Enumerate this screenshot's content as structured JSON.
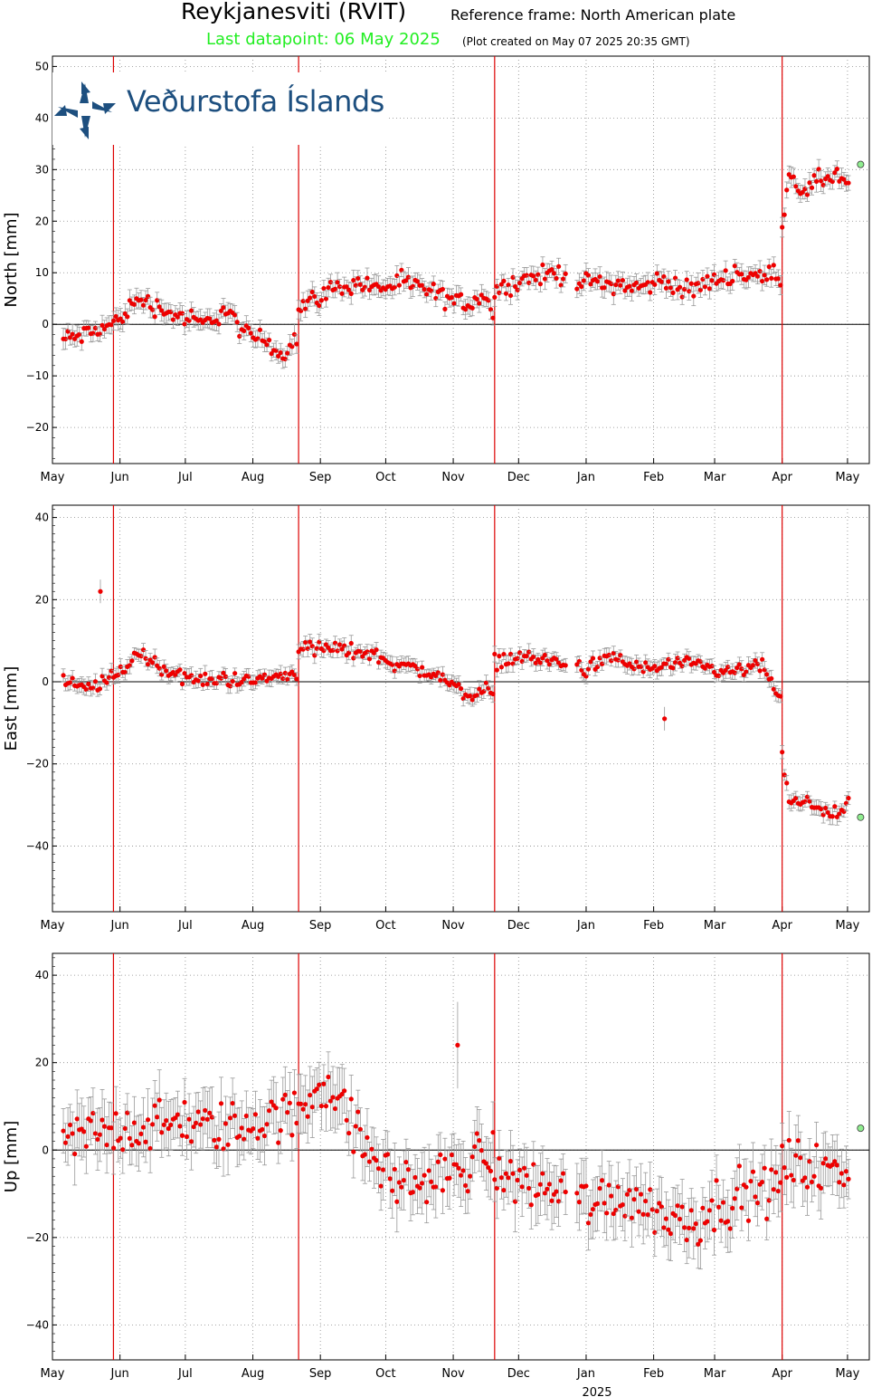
{
  "header": {
    "title": "Reykjanesviti (RVIT)",
    "reference_frame": "Reference frame: North American plate",
    "last_datapoint": "Last datapoint: 06 May 2025",
    "plot_created": "(Plot created on May 07 2025 20:35 GMT)"
  },
  "logo": {
    "text": "Veðurstofa Íslands",
    "icon": "vedurstofa-logo-icon"
  },
  "colors": {
    "points": "#ee0000",
    "last_point": "#90ee90",
    "event_lines": "#dd0000",
    "errorbars": "#999999",
    "grid": "#888888"
  },
  "chart_data": [
    {
      "type": "scatter",
      "component": "north",
      "ylabel": "North [mm]",
      "ylim": [
        -27,
        52
      ],
      "yticks": [
        50,
        40,
        30,
        20,
        10,
        0,
        -10,
        -20
      ],
      "xlim": [
        0,
        375
      ],
      "month_ticks": [
        "May",
        "Jun",
        "Jul",
        "Aug",
        "Sep",
        "Oct",
        "Nov",
        "Dec",
        "Jan",
        "Feb",
        "Mar",
        "Apr",
        "May"
      ],
      "event_lines_day": [
        28,
        113,
        203,
        335
      ],
      "zero_line": true,
      "grid": true,
      "series_segments": [
        {
          "day": [
            5,
            15,
            28,
            40,
            55,
            70,
            80,
            88,
            98,
            105,
            113
          ],
          "value": [
            -3,
            -2,
            0,
            5,
            2,
            0,
            3,
            -2,
            -3,
            -6,
            -2
          ]
        },
        {
          "day": [
            113,
            120,
            130,
            140,
            150,
            160,
            170,
            180,
            190,
            200,
            203
          ],
          "value": [
            3,
            5,
            7,
            8,
            7,
            8,
            7,
            5,
            4,
            6,
            -1
          ]
        },
        {
          "day": [
            203,
            210,
            220,
            232,
            245,
            258,
            270,
            282,
            290,
            300,
            315,
            325,
            335
          ],
          "value": [
            6,
            8,
            9,
            10,
            8,
            8,
            7,
            9,
            6,
            8,
            10,
            9,
            10
          ]
        },
        {
          "day": [
            335,
            338,
            345,
            352,
            360,
            366
          ],
          "value": [
            18,
            30,
            25,
            28,
            29,
            27
          ]
        }
      ],
      "last_point": {
        "day": 371,
        "value": 31
      }
    },
    {
      "type": "scatter",
      "component": "east",
      "ylabel": "East [mm]",
      "ylim": [
        -56,
        43
      ],
      "yticks": [
        40,
        20,
        0,
        -20,
        -40
      ],
      "xlim": [
        0,
        375
      ],
      "month_ticks": [
        "May",
        "Jun",
        "Jul",
        "Aug",
        "Sep",
        "Oct",
        "Nov",
        "Dec",
        "Jan",
        "Feb",
        "Mar",
        "Apr",
        "May"
      ],
      "event_lines_day": [
        28,
        113,
        203,
        335
      ],
      "zero_line": true,
      "grid": true,
      "series_segments": [
        {
          "day": [
            5,
            15,
            28,
            40,
            55,
            70,
            80,
            90,
            100,
            113
          ],
          "value": [
            0,
            -2,
            1,
            7,
            2,
            0,
            1,
            0,
            1,
            2
          ]
        },
        {
          "day": [
            113,
            120,
            130,
            145,
            160,
            175,
            190,
            200,
            203
          ],
          "value": [
            9,
            8,
            8,
            7,
            4,
            2,
            -3,
            -2,
            -4
          ]
        },
        {
          "day": [
            203,
            215,
            230,
            245,
            258,
            270,
            282,
            295,
            310,
            325,
            335
          ],
          "value": [
            5,
            6,
            5,
            3,
            6,
            3,
            4,
            4,
            2,
            4,
            -4
          ]
        },
        {
          "day": [
            335,
            338,
            345,
            352,
            360,
            366
          ],
          "value": [
            -19,
            -29,
            -30,
            -30,
            -33,
            -30
          ]
        }
      ],
      "outliers": [
        {
          "day": 22,
          "value": 22
        },
        {
          "day": 281,
          "value": -9
        }
      ],
      "last_point": {
        "day": 371,
        "value": -33
      }
    },
    {
      "type": "scatter",
      "component": "up",
      "ylabel": "Up [mm]",
      "ylim": [
        -48,
        45
      ],
      "yticks": [
        40,
        20,
        0,
        -20,
        -40
      ],
      "xlim": [
        0,
        375
      ],
      "month_ticks": [
        "May",
        "Jun",
        "Jul",
        "Aug",
        "Sep",
        "Oct",
        "Nov",
        "Dec",
        "Jan",
        "Feb",
        "Mar",
        "Apr",
        "May"
      ],
      "xlabel": "2025",
      "event_lines_day": [
        28,
        113,
        203,
        335
      ],
      "zero_line": true,
      "grid": true,
      "series_segments": [
        {
          "day": [
            5,
            20,
            40,
            60,
            80,
            100,
            113
          ],
          "value": [
            2,
            4,
            5,
            6,
            5,
            7,
            8
          ]
        },
        {
          "day": [
            113,
            120,
            128,
            140,
            152,
            165,
            180,
            195,
            203
          ],
          "value": [
            10,
            14,
            15,
            3,
            -5,
            -8,
            -6,
            -2,
            -1
          ]
        },
        {
          "day": [
            203,
            215,
            230,
            250,
            265,
            280,
            295,
            310,
            325,
            335
          ],
          "value": [
            -5,
            -7,
            -9,
            -12,
            -10,
            -15,
            -16,
            -11,
            -10,
            -8
          ]
        },
        {
          "day": [
            335,
            345,
            355,
            366
          ],
          "value": [
            -2,
            -4,
            -5,
            -6
          ]
        }
      ],
      "outliers": [
        {
          "day": 186,
          "value": 24
        }
      ],
      "last_point": {
        "day": 371,
        "value": 5
      }
    }
  ]
}
